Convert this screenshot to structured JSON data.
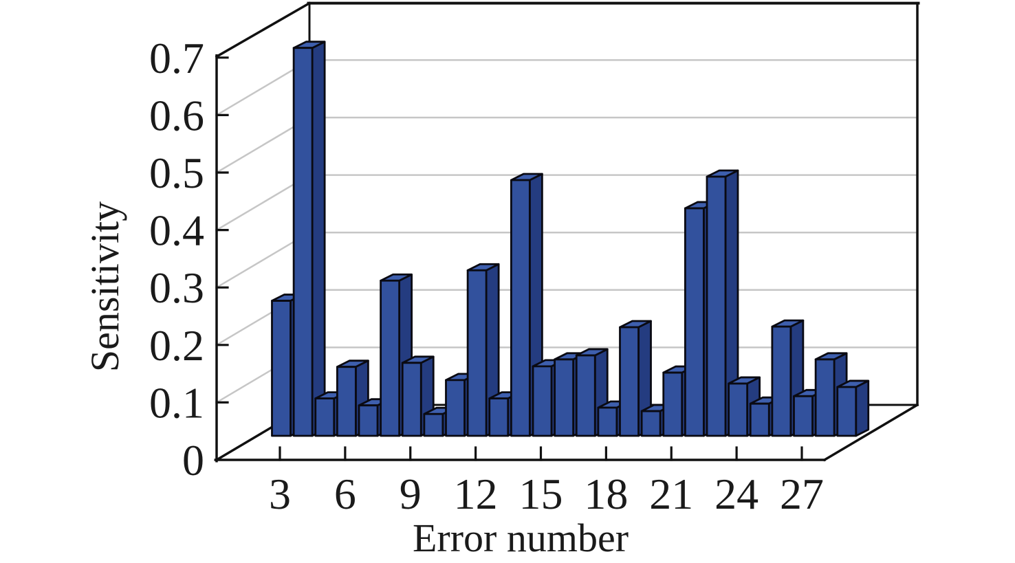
{
  "page": {
    "background": "#ffffff"
  },
  "chart_data": {
    "type": "bar",
    "subtype": "3d-column",
    "title": "",
    "xlabel": "Error number",
    "ylabel": "Sensitivity",
    "x_values": [
      3,
      4,
      5,
      6,
      7,
      8,
      9,
      10,
      11,
      12,
      13,
      14,
      15,
      16,
      17,
      18,
      19,
      20,
      21,
      22,
      23,
      24,
      25,
      26,
      27,
      28,
      29
    ],
    "values": [
      0.235,
      0.675,
      0.065,
      0.12,
      0.053,
      0.27,
      0.127,
      0.038,
      0.097,
      0.288,
      0.065,
      0.445,
      0.121,
      0.133,
      0.14,
      0.049,
      0.189,
      0.043,
      0.11,
      0.396,
      0.451,
      0.091,
      0.056,
      0.19,
      0.069,
      0.133,
      0.085
    ],
    "ylim": [
      0,
      0.7
    ],
    "y_tick_labels": [
      "0",
      "0.1",
      "0.2",
      "0.3",
      "0.4",
      "0.5",
      "0.6",
      "0.7"
    ],
    "x_tick_labels": [
      "3",
      "6",
      "9",
      "12",
      "15",
      "18",
      "21",
      "24",
      "27"
    ],
    "gridlines": [
      0.1,
      0.2,
      0.3,
      0.4,
      0.5,
      0.6
    ],
    "legend": "none",
    "colors": {
      "bar_front": "#32519d",
      "bar_side": "#243c80",
      "bar_top": "#3e5fae",
      "bar_outline": "#0a0a12",
      "gridline": "#c6c6c6",
      "axis": "#111111",
      "text": "#1a1a1a",
      "background": "#ffffff"
    }
  }
}
